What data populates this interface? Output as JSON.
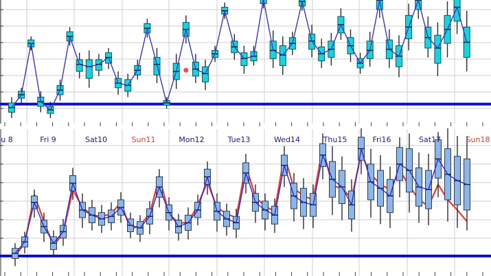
{
  "chart_data": [
    {
      "type": "boxplot-timeseries",
      "panel": "top",
      "title": "",
      "xlabel": "",
      "ylabel": "",
      "ylim": [
        0,
        100
      ],
      "grid": true,
      "colors": {
        "box_fill": "#19d3dc",
        "box_stroke": "#0a5560",
        "median_line": "#3636c8",
        "reference_line": "#0b0bd0",
        "grid": "#cfcfd6",
        "highlight_point": "#ff4848"
      },
      "reference_level": 12,
      "highlight_point": {
        "x": 18,
        "y": 41,
        "label": ""
      },
      "series": [
        {
          "name": "median",
          "values": [
            9,
            20,
            64,
            14,
            7,
            24,
            70,
            46,
            44,
            46,
            52,
            30,
            28,
            41,
            77,
            46,
            13,
            40,
            76,
            42,
            38,
            55,
            92,
            61,
            51,
            53,
            102,
            58,
            54,
            64,
            100,
            66,
            55,
            59,
            80,
            62,
            47,
            58,
            101,
            59,
            53,
            78,
            101,
            69,
            60,
            76,
            95,
            65
          ]
        },
        {
          "name": "box_low",
          "values": [
            5,
            17,
            61,
            10,
            4,
            20,
            66,
            40,
            34,
            41,
            47,
            26,
            23,
            37,
            73,
            37,
            11,
            33,
            70,
            36,
            31,
            52,
            89,
            56,
            45,
            49,
            98,
            51,
            45,
            59,
            96,
            59,
            49,
            52,
            73,
            55,
            43,
            51,
            93,
            51,
            44,
            68,
            93,
            60,
            47,
            64,
            83,
            52
          ]
        },
        {
          "name": "box_high",
          "values": [
            13,
            23,
            67,
            18,
            10,
            28,
            74,
            50,
            50,
            50,
            56,
            34,
            33,
            45,
            81,
            52,
            15,
            47,
            82,
            48,
            44,
            58,
            95,
            66,
            56,
            57,
            106,
            66,
            62,
            69,
            104,
            72,
            61,
            66,
            87,
            69,
            51,
            66,
            109,
            67,
            62,
            88,
            109,
            78,
            71,
            88,
            107,
            78
          ]
        },
        {
          "name": "whisker_low",
          "values": [
            0,
            13,
            58,
            5,
            0,
            15,
            62,
            34,
            26,
            36,
            42,
            20,
            18,
            33,
            69,
            30,
            8,
            25,
            64,
            30,
            24,
            48,
            85,
            50,
            38,
            45,
            94,
            43,
            37,
            54,
            92,
            52,
            43,
            45,
            67,
            48,
            38,
            44,
            86,
            43,
            35,
            58,
            85,
            52,
            36,
            52,
            72,
            40
          ]
        },
        {
          "name": "whisker_high",
          "values": [
            18,
            26,
            70,
            23,
            14,
            33,
            78,
            56,
            58,
            55,
            60,
            40,
            38,
            50,
            85,
            60,
            18,
            55,
            88,
            55,
            50,
            62,
            99,
            72,
            62,
            62,
            111,
            75,
            70,
            74,
            108,
            80,
            68,
            73,
            94,
            76,
            56,
            74,
            117,
            76,
            71,
            98,
            117,
            87,
            82,
            100,
            119,
            92
          ]
        }
      ]
    },
    {
      "type": "boxplot-timeseries",
      "panel": "bottom",
      "title": "",
      "xlabel": "",
      "ylabel": "",
      "ylim": [
        0,
        100
      ],
      "grid": true,
      "colors": {
        "box_fill": "#8cb6e6",
        "box_stroke": "#2c3b57",
        "median_line": "#2828d8",
        "forecast_line": "#e23b2b",
        "reference_line": "#0b0bd0",
        "grid": "#cfcfd6"
      },
      "reference_level": 6,
      "x_tick_labels": [
        {
          "label": "u 8",
          "color": "#1a1a8a"
        },
        {
          "label": "Fri 9",
          "color": "#1a1a8a"
        },
        {
          "label": "Sat10",
          "color": "#1a1a8a"
        },
        {
          "label": "Sun11",
          "color": "#e23b2b"
        },
        {
          "label": "Mon12",
          "color": "#1a1a8a"
        },
        {
          "label": "Tue13",
          "color": "#1a1a8a"
        },
        {
          "label": "Wed14",
          "color": "#1a1a8a"
        },
        {
          "label": "Thu15",
          "color": "#1a1a8a"
        },
        {
          "label": "Fri16",
          "color": "#1a1a8a"
        },
        {
          "label": "Sat17",
          "color": "#1a1a8a"
        },
        {
          "label": "Sun18",
          "color": "#e23b2b"
        }
      ],
      "series": [
        {
          "name": "median",
          "values": [
            8,
            17,
            48,
            29,
            16,
            25,
            63,
            42,
            38,
            35,
            37,
            44,
            30,
            28,
            37,
            60,
            40,
            29,
            32,
            42,
            68,
            41,
            35,
            32,
            71,
            48,
            42,
            38,
            77,
            53,
            48,
            46,
            85,
            66,
            60,
            46,
            90,
            64,
            59,
            53,
            78,
            73,
            60,
            58,
            82,
            70,
            65,
            62
          ]
        },
        {
          "name": "forecast",
          "values": [
            6,
            16,
            54,
            33,
            14,
            24,
            58,
            44,
            38,
            37,
            39,
            48,
            27,
            30,
            39,
            68,
            39,
            32,
            32,
            46,
            64,
            44,
            39,
            36,
            77,
            52,
            45,
            41,
            85,
            59,
            53,
            50,
            91,
            61,
            59,
            51,
            86,
            70,
            62,
            58,
            73,
            61,
            50,
            45,
            62,
            50,
            42,
            33
          ]
        },
        {
          "name": "box_low",
          "values": [
            4,
            13,
            43,
            24,
            11,
            20,
            57,
            36,
            32,
            30,
            32,
            38,
            25,
            23,
            31,
            52,
            34,
            24,
            26,
            36,
            62,
            34,
            29,
            27,
            63,
            41,
            35,
            31,
            69,
            43,
            37,
            37,
            76,
            52,
            47,
            35,
            81,
            50,
            45,
            40,
            65,
            56,
            45,
            43,
            67,
            50,
            46,
            42
          ]
        },
        {
          "name": "box_high",
          "values": [
            12,
            21,
            53,
            34,
            21,
            30,
            69,
            48,
            44,
            40,
            42,
            50,
            35,
            33,
            43,
            68,
            46,
            34,
            38,
            48,
            74,
            48,
            41,
            37,
            79,
            55,
            49,
            45,
            85,
            63,
            59,
            55,
            94,
            80,
            73,
            57,
            99,
            78,
            73,
            66,
            91,
            90,
            75,
            73,
            97,
            90,
            84,
            82
          ]
        },
        {
          "name": "whisker_low",
          "values": [
            -2,
            8,
            36,
            17,
            5,
            14,
            50,
            28,
            26,
            24,
            26,
            32,
            20,
            17,
            23,
            44,
            26,
            18,
            19,
            30,
            54,
            25,
            22,
            20,
            55,
            32,
            26,
            24,
            60,
            33,
            27,
            28,
            66,
            38,
            34,
            25,
            70,
            36,
            31,
            28,
            52,
            40,
            32,
            30,
            52,
            33,
            28,
            26
          ]
        },
        {
          "name": "whisker_high",
          "values": [
            16,
            25,
            58,
            40,
            26,
            35,
            75,
            55,
            50,
            46,
            48,
            56,
            40,
            38,
            49,
            74,
            52,
            39,
            44,
            54,
            80,
            55,
            47,
            43,
            86,
            62,
            55,
            51,
            92,
            71,
            67,
            62,
            102,
            92,
            84,
            66,
            106,
            90,
            85,
            76,
            99,
            102,
            87,
            86,
            103,
            106,
            100,
            100
          ]
        }
      ]
    }
  ]
}
